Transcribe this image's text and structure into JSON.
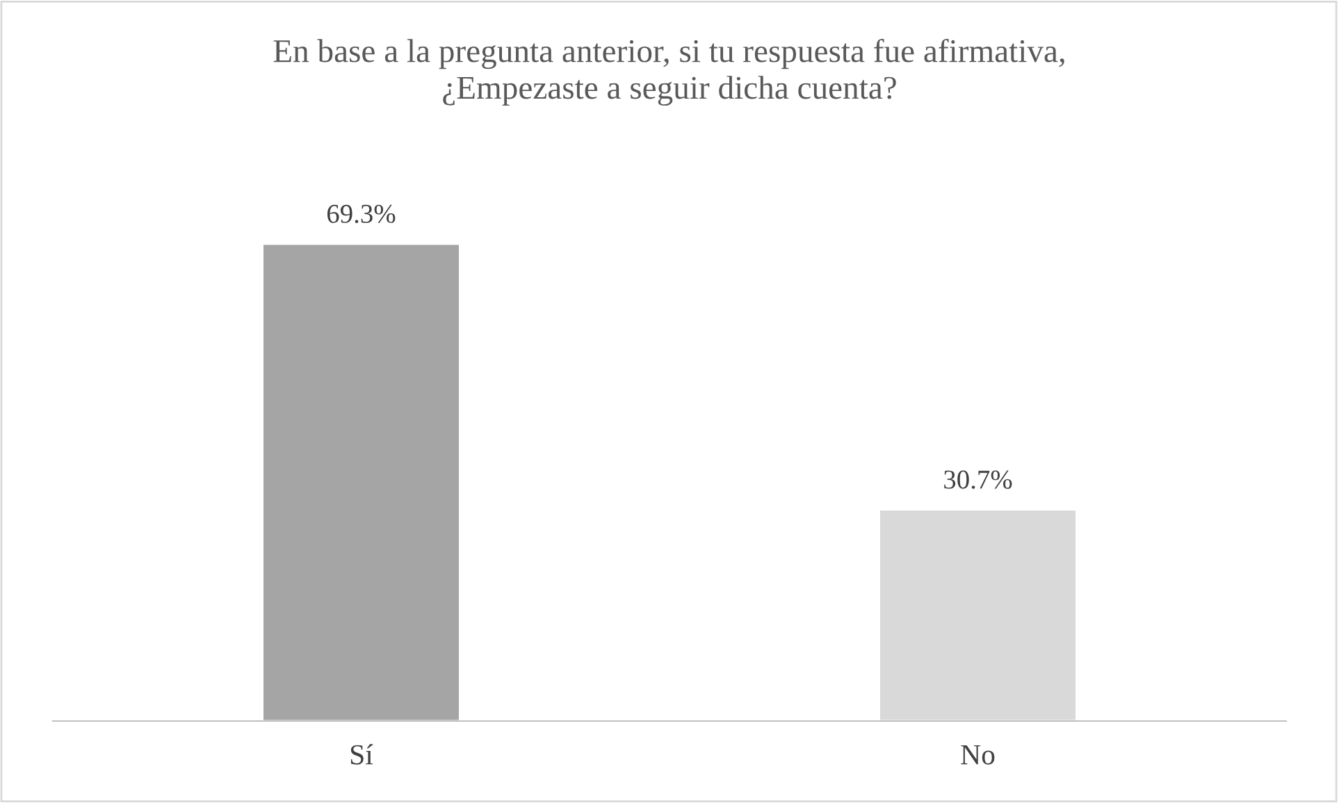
{
  "chart_data": {
    "type": "bar",
    "title": "En base a la pregunta anterior, si tu respuesta fue afirmativa,\n¿Empezaste a seguir dicha cuenta?",
    "categories": [
      "Sí",
      "No"
    ],
    "values": [
      69.3,
      30.7
    ],
    "value_labels": [
      "69.3%",
      "30.7%"
    ],
    "colors": [
      "#a5a5a5",
      "#d9d9d9"
    ],
    "grid": false,
    "legend": false
  }
}
